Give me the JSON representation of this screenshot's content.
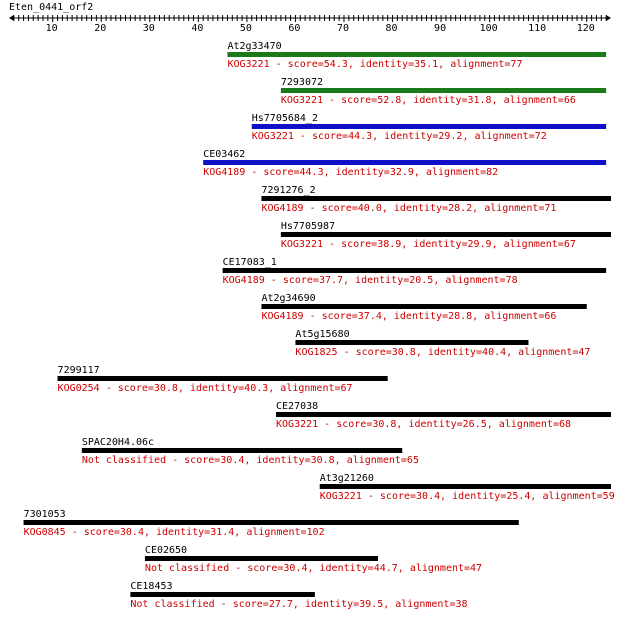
{
  "query": {
    "name": "Eten_0441_orf2",
    "length": 125
  },
  "axis": {
    "ticks": [
      10,
      20,
      30,
      40,
      50,
      60,
      70,
      80,
      90,
      100,
      110,
      120
    ]
  },
  "colors": {
    "green": "#1a7a1a",
    "blue": "#1010c8",
    "black": "#000000",
    "label": "#cc0000",
    "text": "#000000"
  },
  "hits": [
    {
      "name": "At2g33470",
      "start": 46,
      "end": 124,
      "color": "green",
      "desc": "KOG3221 - score=54.3, identity=35.1, alignment=77"
    },
    {
      "name": "7293072",
      "start": 57,
      "end": 124,
      "color": "green",
      "desc": "KOG3221 - score=52.8, identity=31.8, alignment=66"
    },
    {
      "name": "Hs7705684_2",
      "start": 51,
      "end": 124,
      "color": "blue",
      "desc": "KOG3221 - score=44.3, identity=29.2, alignment=72"
    },
    {
      "name": "CE03462",
      "start": 41,
      "end": 124,
      "color": "blue",
      "desc": "KOG4189 - score=44.3, identity=32.9, alignment=82"
    },
    {
      "name": "7291276_2",
      "start": 53,
      "end": 125,
      "color": "black",
      "desc": "KOG4189 - score=40.0, identity=28.2, alignment=71"
    },
    {
      "name": "Hs7705987",
      "start": 57,
      "end": 125,
      "color": "black",
      "desc": "KOG3221 - score=38.9, identity=29.9, alignment=67"
    },
    {
      "name": "CE17083_1",
      "start": 45,
      "end": 124,
      "color": "black",
      "desc": "KOG4189 - score=37.7, identity=20.5, alignment=78"
    },
    {
      "name": "At2g34690",
      "start": 53,
      "end": 120,
      "color": "black",
      "desc": "KOG4189 - score=37.4, identity=28.8, alignment=66"
    },
    {
      "name": "At5g15680",
      "start": 60,
      "end": 108,
      "color": "black",
      "desc": "KOG1825 - score=30.8, identity=40.4, alignment=47"
    },
    {
      "name": "7299117",
      "start": 11,
      "end": 79,
      "color": "black",
      "desc": "KOG0254 - score=30.8, identity=40.3, alignment=67"
    },
    {
      "name": "CE27038",
      "start": 56,
      "end": 125,
      "color": "black",
      "desc": "KOG3221 - score=30.8, identity=26.5, alignment=68"
    },
    {
      "name": "SPAC20H4.06c",
      "start": 16,
      "end": 82,
      "color": "black",
      "desc": "Not classified - score=30.4, identity=30.8, alignment=65"
    },
    {
      "name": "At3g21260",
      "start": 65,
      "end": 125,
      "color": "black",
      "desc": "KOG3221 - score=30.4, identity=25.4, alignment=59"
    },
    {
      "name": "7301053",
      "start": 4,
      "end": 106,
      "color": "black",
      "desc": "KOG0845 - score=30.4, identity=31.4, alignment=102"
    },
    {
      "name": "CE02650",
      "start": 29,
      "end": 77,
      "color": "black",
      "desc": "Not classified - score=30.4, identity=44.7, alignment=47"
    },
    {
      "name": "CE18453",
      "start": 26,
      "end": 64,
      "color": "black",
      "desc": "Not classified - score=27.7, identity=39.5, alignment=38"
    }
  ]
}
